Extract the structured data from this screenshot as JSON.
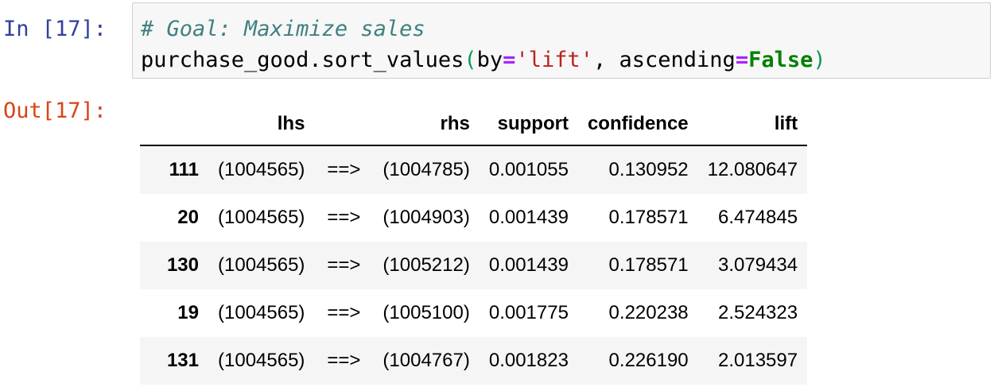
{
  "input_prompt": "In [17]:",
  "output_prompt": "Out[17]:",
  "code": {
    "comment": "# Goal: Maximize sales",
    "line2": {
      "call": "purchase_good.sort_values",
      "open_paren": "(",
      "arg1_name": "by",
      "eq": "=",
      "arg1_value": "'lift'",
      "sep": ", ",
      "arg2_name": "ascending",
      "arg2_value": "False",
      "close_paren": ")"
    }
  },
  "table": {
    "columns": [
      "",
      "lhs",
      "",
      "rhs",
      "support",
      "confidence",
      "lift"
    ],
    "rows": [
      {
        "index": "111",
        "lhs": "(1004565)",
        "arrow": "==>",
        "rhs": "(1004785)",
        "support": "0.001055",
        "confidence": "0.130952",
        "lift": "12.080647"
      },
      {
        "index": "20",
        "lhs": "(1004565)",
        "arrow": "==>",
        "rhs": "(1004903)",
        "support": "0.001439",
        "confidence": "0.178571",
        "lift": "6.474845"
      },
      {
        "index": "130",
        "lhs": "(1004565)",
        "arrow": "==>",
        "rhs": "(1005212)",
        "support": "0.001439",
        "confidence": "0.178571",
        "lift": "3.079434"
      },
      {
        "index": "19",
        "lhs": "(1004565)",
        "arrow": "==>",
        "rhs": "(1005100)",
        "support": "0.001775",
        "confidence": "0.220238",
        "lift": "2.524323"
      },
      {
        "index": "131",
        "lhs": "(1004565)",
        "arrow": "==>",
        "rhs": "(1004767)",
        "support": "0.001823",
        "confidence": "0.226190",
        "lift": "2.013597"
      }
    ]
  }
}
